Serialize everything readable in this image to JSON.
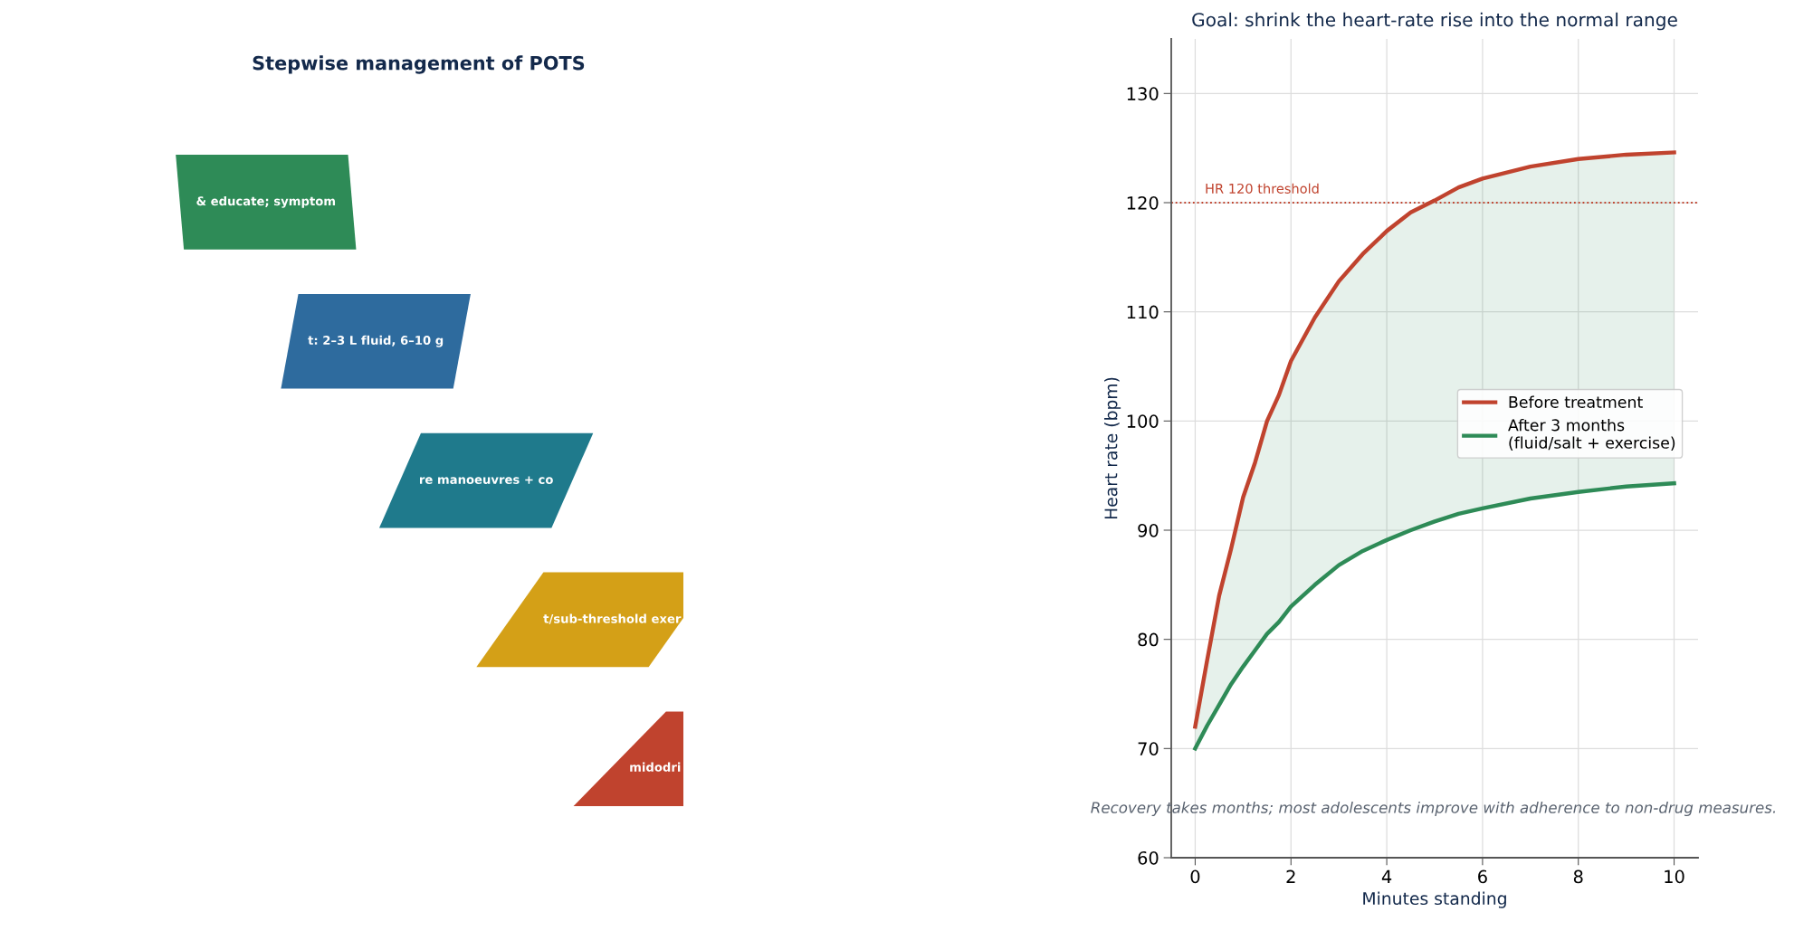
{
  "chart_data": [
    {
      "type": "other",
      "title": "Stepwise management of POTS",
      "annotations": [
        "& educate; symptom",
        "t: 2–3 L fluid, 6–10 g",
        "re manoeuvres + co",
        "t/sub-threshold exer",
        "midodri"
      ],
      "colors": [
        "#2e8b57",
        "#2e6b9e",
        "#1f7a8c",
        "#d4a017",
        "#c0432e"
      ]
    },
    {
      "type": "line",
      "title": "Goal: shrink the heart-rate rise into the normal range",
      "xlabel": "Minutes standing",
      "ylabel": "Heart rate (bpm)",
      "xlim": [
        -0.5,
        10.5
      ],
      "ylim": [
        60,
        135
      ],
      "xticks": [
        0,
        2,
        4,
        6,
        8,
        10
      ],
      "yticks": [
        60,
        70,
        80,
        90,
        100,
        110,
        120,
        130
      ],
      "grid": true,
      "legend": "right",
      "marker": "none",
      "line_style": "solid",
      "series": [
        {
          "name": "Before treatment",
          "color": "#c0432e",
          "x": [
            0,
            0.25,
            0.5,
            0.75,
            1,
            1.25,
            1.5,
            1.75,
            2,
            2.5,
            3,
            3.5,
            4,
            4.5,
            5,
            5.5,
            6,
            7,
            8,
            9,
            10
          ],
          "values": [
            72,
            78.1,
            84,
            88.3,
            93,
            96.2,
            100,
            102.4,
            105.5,
            109.5,
            112.8,
            115.3,
            117.4,
            119.1,
            120.2,
            121.4,
            122.2,
            123.3,
            124,
            124.4,
            124.6
          ],
          "lower": [
            70,
            72.1,
            74,
            75.9,
            77.5,
            79,
            80.5,
            81.6,
            83,
            85,
            86.8,
            88.1,
            89.1,
            90,
            90.8,
            91.5,
            92,
            92.9,
            93.5,
            94,
            94.3
          ],
          "upper": [
            72,
            78.1,
            84,
            88.3,
            93,
            96.2,
            100,
            102.4,
            105.5,
            109.5,
            112.8,
            115.3,
            117.4,
            119.1,
            120.2,
            121.4,
            122.2,
            123.3,
            124,
            124.4,
            124.6
          ]
        },
        {
          "name": "After 3 months\n(fluid/salt + exercise)",
          "color": "#2e8b57",
          "x": [
            0,
            0.25,
            0.5,
            0.75,
            1,
            1.25,
            1.5,
            1.75,
            2,
            2.5,
            3,
            3.5,
            4,
            4.5,
            5,
            5.5,
            6,
            7,
            8,
            9,
            10
          ],
          "values": [
            70,
            72.1,
            74,
            75.9,
            77.5,
            79,
            80.5,
            81.6,
            83,
            85,
            86.8,
            88.1,
            89.1,
            90,
            90.8,
            91.5,
            92,
            92.9,
            93.5,
            94,
            94.3
          ]
        }
      ],
      "ref_lines": [
        {
          "axis": "y",
          "value": 120,
          "label": "HR 120 threshold",
          "color": "#c0432e",
          "line_style": "dotted"
        }
      ],
      "annotations": [
        "Recovery takes months; most adolescents improve with adherence to non-drug measures."
      ]
    }
  ]
}
